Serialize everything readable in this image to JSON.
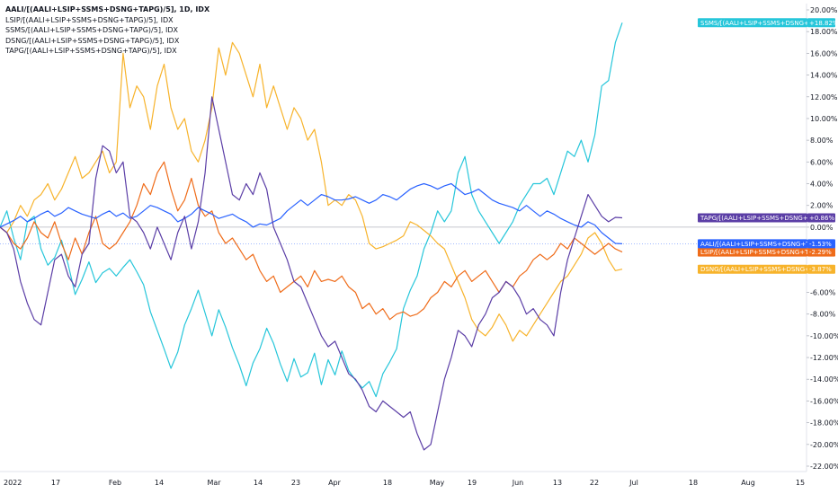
{
  "legend": [
    "AALI/[(AALI+LSIP+SSMS+DSNG+TAPG)/5], 1D, IDX",
    "LSIP/[(AALI+LSIP+SSMS+DSNG+TAPG)/5], IDX",
    "SSMS/[(AALI+LSIP+SSMS+DSNG+TAPG)/5], IDX",
    "DSNG/[(AALI+LSIP+SSMS+DSNG+TAPG)/5], IDX",
    "TAPG/[(AALI+LSIP+SSMS+DSNG+TAPG)/5], IDX"
  ],
  "chart_data": {
    "type": "line",
    "x_ticks": [
      "2022",
      "17",
      "Feb",
      "14",
      "Mar",
      "14",
      "23",
      "Apr",
      "18",
      "May",
      "19",
      "Jun",
      "13",
      "22",
      "Jul",
      "18",
      "Aug",
      "15"
    ],
    "y_ticks": [
      "20.00%",
      "18.00%",
      "16.00%",
      "14.00%",
      "12.00%",
      "10.00%",
      "8.00%",
      "6.00%",
      "4.00%",
      "2.00%",
      "0.00%",
      "-2.00%",
      "-4.00%",
      "-6.00%",
      "-8.00%",
      "-10.00%",
      "-12.00%",
      "-14.00%",
      "-16.00%",
      "-18.00%",
      "-20.00%",
      "-22.00%"
    ],
    "ylim": [
      -22.5,
      20.5
    ],
    "grid": false,
    "series": [
      {
        "name": "SSMS/[(AALI+LSIP+SSMS+DSNG+TAPG)/5]",
        "color": "#26c6da",
        "last_label": "+18.82%",
        "values": [
          0,
          1.5,
          -1,
          -3,
          0.5,
          1,
          -2,
          -3.5,
          -2.8,
          -1.2,
          -3.5,
          -6.2,
          -4.8,
          -3.2,
          -5.1,
          -4.2,
          -3.8,
          -4.5,
          -3.7,
          -3,
          -4.1,
          -5.3,
          -7.8,
          -9.5,
          -11.2,
          -13,
          -11.5,
          -9,
          -7.5,
          -5.8,
          -7.9,
          -10,
          -7.6,
          -9.2,
          -11.1,
          -12.7,
          -14.6,
          -12.5,
          -11.2,
          -9.3,
          -10.7,
          -12.6,
          -14.2,
          -12.1,
          -13.8,
          -13.4,
          -11.6,
          -14.5,
          -12.2,
          -13.6,
          -11.4,
          -13.2,
          -14.1,
          -14.8,
          -14.2,
          -15.6,
          -13.5,
          -12.4,
          -11.2,
          -7.5,
          -5.8,
          -4.5,
          -2,
          -0.5,
          1.5,
          0.5,
          1.5,
          5,
          6.5,
          3,
          1.5,
          0.5,
          -0.5,
          -1.5,
          -0.5,
          0.5,
          2,
          3,
          4,
          4,
          4.5,
          3,
          5,
          7,
          6.5,
          8,
          6,
          8.5,
          13,
          13.5,
          17,
          18.82
        ]
      },
      {
        "name": "DSNG/[(AALI+LSIP+SSMS+DSNG+TAPG)/5]",
        "color": "#f7b32b",
        "last_label": "-3.87%",
        "values": [
          0,
          -0.5,
          0.5,
          2,
          1,
          2.5,
          3,
          4,
          2.5,
          3.5,
          5,
          6.5,
          4.5,
          5,
          6,
          7,
          5,
          6,
          16,
          11,
          13,
          12,
          9,
          13,
          15,
          11,
          9,
          10,
          7,
          6,
          8,
          11,
          16.5,
          14,
          17,
          16,
          14,
          12,
          15,
          11,
          13,
          11,
          9,
          11,
          10,
          8,
          9,
          6,
          2,
          2.5,
          2,
          3,
          2.5,
          1,
          -1.5,
          -2,
          -1.8,
          -1.5,
          -1.2,
          -0.8,
          0.5,
          0.2,
          -0.3,
          -0.8,
          -1.5,
          -2,
          -3.5,
          -5,
          -6.5,
          -8.5,
          -9.5,
          -10,
          -9.2,
          -8,
          -9,
          -10.5,
          -9.5,
          -10,
          -9,
          -8,
          -7,
          -6,
          -5,
          -4.5,
          -3.5,
          -2.5,
          -1,
          -0.5,
          -1.5,
          -3,
          -4,
          -3.87
        ]
      },
      {
        "name": "LSIP/[(AALI+LSIP+SSMS+DSNG+TAPG)/5]",
        "color": "#ef6c1a",
        "last_label": "-2.29%",
        "values": [
          0,
          -0.5,
          -1.5,
          -2,
          -1,
          0.5,
          -0.5,
          -1,
          0.5,
          -1.5,
          -3,
          -1,
          -2.5,
          -0.5,
          1,
          -1.5,
          -2,
          -1.5,
          -0.5,
          0.5,
          2,
          4,
          3,
          5,
          6,
          3.5,
          1.5,
          2.5,
          4.5,
          2,
          1,
          1.5,
          -0.5,
          -1.5,
          -1,
          -2,
          -3,
          -2.5,
          -4,
          -5,
          -4.5,
          -6,
          -5.5,
          -5,
          -4.5,
          -5.5,
          -4,
          -5,
          -4.8,
          -5,
          -4.5,
          -5.5,
          -6,
          -7.5,
          -7,
          -8,
          -7.5,
          -8.5,
          -8,
          -7.8,
          -8.2,
          -8,
          -7.5,
          -6.5,
          -6,
          -5,
          -5.5,
          -4.5,
          -4,
          -5,
          -4.5,
          -4,
          -5,
          -6,
          -5,
          -5.5,
          -4.5,
          -4,
          -3,
          -2.5,
          -3,
          -2.5,
          -1.5,
          -2,
          -1,
          -1.5,
          -2,
          -2.5,
          -2,
          -1.5,
          -2,
          -2.29
        ]
      },
      {
        "name": "AALI/[(AALI+LSIP+SSMS+DSNG+TAPG)/5]",
        "color": "#2962ff",
        "last_label": "-1.53%",
        "values": [
          0,
          0.3,
          0.6,
          1,
          0.5,
          0.8,
          1.2,
          1.5,
          1,
          1.3,
          1.8,
          1.5,
          1.2,
          1,
          0.8,
          1.2,
          1.5,
          1,
          1.3,
          0.8,
          1,
          1.5,
          2,
          1.8,
          1.5,
          1.2,
          0.5,
          0.8,
          1.2,
          1.8,
          1.5,
          1.2,
          0.8,
          1,
          1.2,
          0.8,
          0.5,
          0,
          0.3,
          0.2,
          0.5,
          0.8,
          1.5,
          2,
          2.5,
          2,
          2.5,
          3,
          2.8,
          2.5,
          2.5,
          2.6,
          2.8,
          2.5,
          2.2,
          2.5,
          3,
          2.8,
          2.5,
          3,
          3.5,
          3.8,
          4,
          3.8,
          3.5,
          3.8,
          4,
          3.5,
          3,
          3.2,
          3.5,
          3,
          2.5,
          2.2,
          2,
          1.8,
          1.5,
          2,
          1.5,
          1,
          1.5,
          1.2,
          0.8,
          0.5,
          0.2,
          0,
          0.5,
          0.2,
          -0.5,
          -1,
          -1.5,
          -1.53
        ]
      },
      {
        "name": "TAPG/[(AALI+LSIP+SSMS+DSNG+TAPG)/5]",
        "color": "#5b3ea6",
        "last_label": "+0.86%",
        "values": [
          0,
          -0.5,
          -2,
          -5,
          -7,
          -8.5,
          -9,
          -6,
          -3,
          -2.5,
          -4.5,
          -5.5,
          -2.5,
          -1.5,
          4.5,
          7.5,
          7,
          5,
          6,
          1,
          0.5,
          -0.5,
          -2,
          0,
          -1.5,
          -3,
          -0.5,
          1,
          -2,
          0.5,
          5,
          12,
          9,
          6,
          3,
          2.5,
          4,
          3,
          5,
          3.5,
          0,
          -1.5,
          -3,
          -5,
          -5.5,
          -7,
          -8.5,
          -10,
          -11,
          -10.5,
          -12,
          -13.5,
          -14,
          -15,
          -16.5,
          -17,
          -16,
          -16.5,
          -17,
          -17.5,
          -17,
          -19,
          -20.5,
          -20,
          -17,
          -14,
          -12,
          -9.5,
          -10,
          -11,
          -9,
          -8,
          -6.5,
          -6,
          -5,
          -5.5,
          -6.5,
          -8,
          -7.5,
          -8.5,
          -9,
          -10,
          -6,
          -3,
          -1,
          1,
          3,
          2,
          1,
          0.5,
          0.9,
          0.86
        ]
      }
    ]
  }
}
